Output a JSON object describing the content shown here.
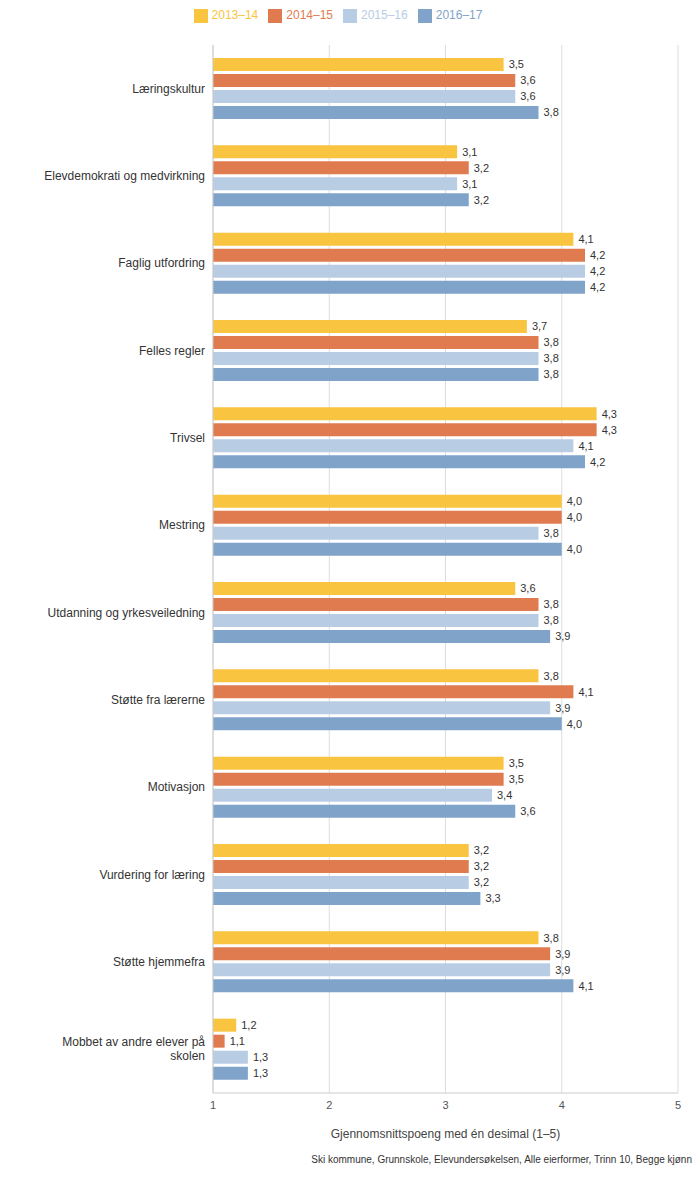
{
  "chart_data": {
    "type": "bar",
    "orientation": "horizontal",
    "xlabel": "Gjennomsnittspoeng med én desimal (1–5)",
    "footnote": "Ski kommune, Grunnskole, Elevundersøkelsen, Alle eierformer, Trinn 10, Begge kjønn",
    "categories": [
      "Læringskultur",
      "Elevdemokrati og medvirkning",
      "Faglig utfordring",
      "Felles regler",
      "Trivsel",
      "Mestring",
      "Utdanning og yrkesveiledning",
      "Støtte fra lærerne",
      "Motivasjon",
      "Vurdering for læring",
      "Støtte hjemmefra",
      "Mobbet av andre elever på skolen"
    ],
    "series": [
      {
        "name": "2013–14",
        "color": "#f9c440",
        "values": [
          3.5,
          3.1,
          4.1,
          3.7,
          4.3,
          4.0,
          3.6,
          3.8,
          3.5,
          3.2,
          3.8,
          1.2
        ],
        "value_labels": [
          "3,5",
          "3,1",
          "4,1",
          "3,7",
          "4,3",
          "4,0",
          "3,6",
          "3,8",
          "3,5",
          "3,2",
          "3,8",
          "1,2"
        ]
      },
      {
        "name": "2014–15",
        "color": "#e07b4f",
        "values": [
          3.6,
          3.2,
          4.2,
          3.8,
          4.3,
          4.0,
          3.8,
          4.1,
          3.5,
          3.2,
          3.9,
          1.1
        ],
        "value_labels": [
          "3,6",
          "3,2",
          "4,2",
          "3,8",
          "4,3",
          "4,0",
          "3,8",
          "4,1",
          "3,5",
          "3,2",
          "3,9",
          "1,1"
        ]
      },
      {
        "name": "2015–16",
        "color": "#b8cce4",
        "values": [
          3.6,
          3.1,
          4.2,
          3.8,
          4.1,
          3.8,
          3.8,
          3.9,
          3.4,
          3.2,
          3.9,
          1.3
        ],
        "value_labels": [
          "3,6",
          "3,1",
          "4,2",
          "3,8",
          "4,1",
          "3,8",
          "3,8",
          "3,9",
          "3,4",
          "3,2",
          "3,9",
          "1,3"
        ]
      },
      {
        "name": "2016–17",
        "color": "#7fa3c9",
        "values": [
          3.8,
          3.2,
          4.2,
          3.8,
          4.2,
          4.0,
          3.9,
          4.0,
          3.6,
          3.3,
          4.1,
          1.3
        ],
        "value_labels": [
          "3,8",
          "3,2",
          "4,2",
          "3,8",
          "4,2",
          "4,0",
          "3,9",
          "4,0",
          "3,6",
          "3,3",
          "4,1",
          "1,3"
        ]
      }
    ],
    "xlim": [
      1,
      5
    ],
    "xticks": [
      1,
      2,
      3,
      4,
      5
    ],
    "grid": true,
    "legend": "top",
    "data_labels": true
  }
}
